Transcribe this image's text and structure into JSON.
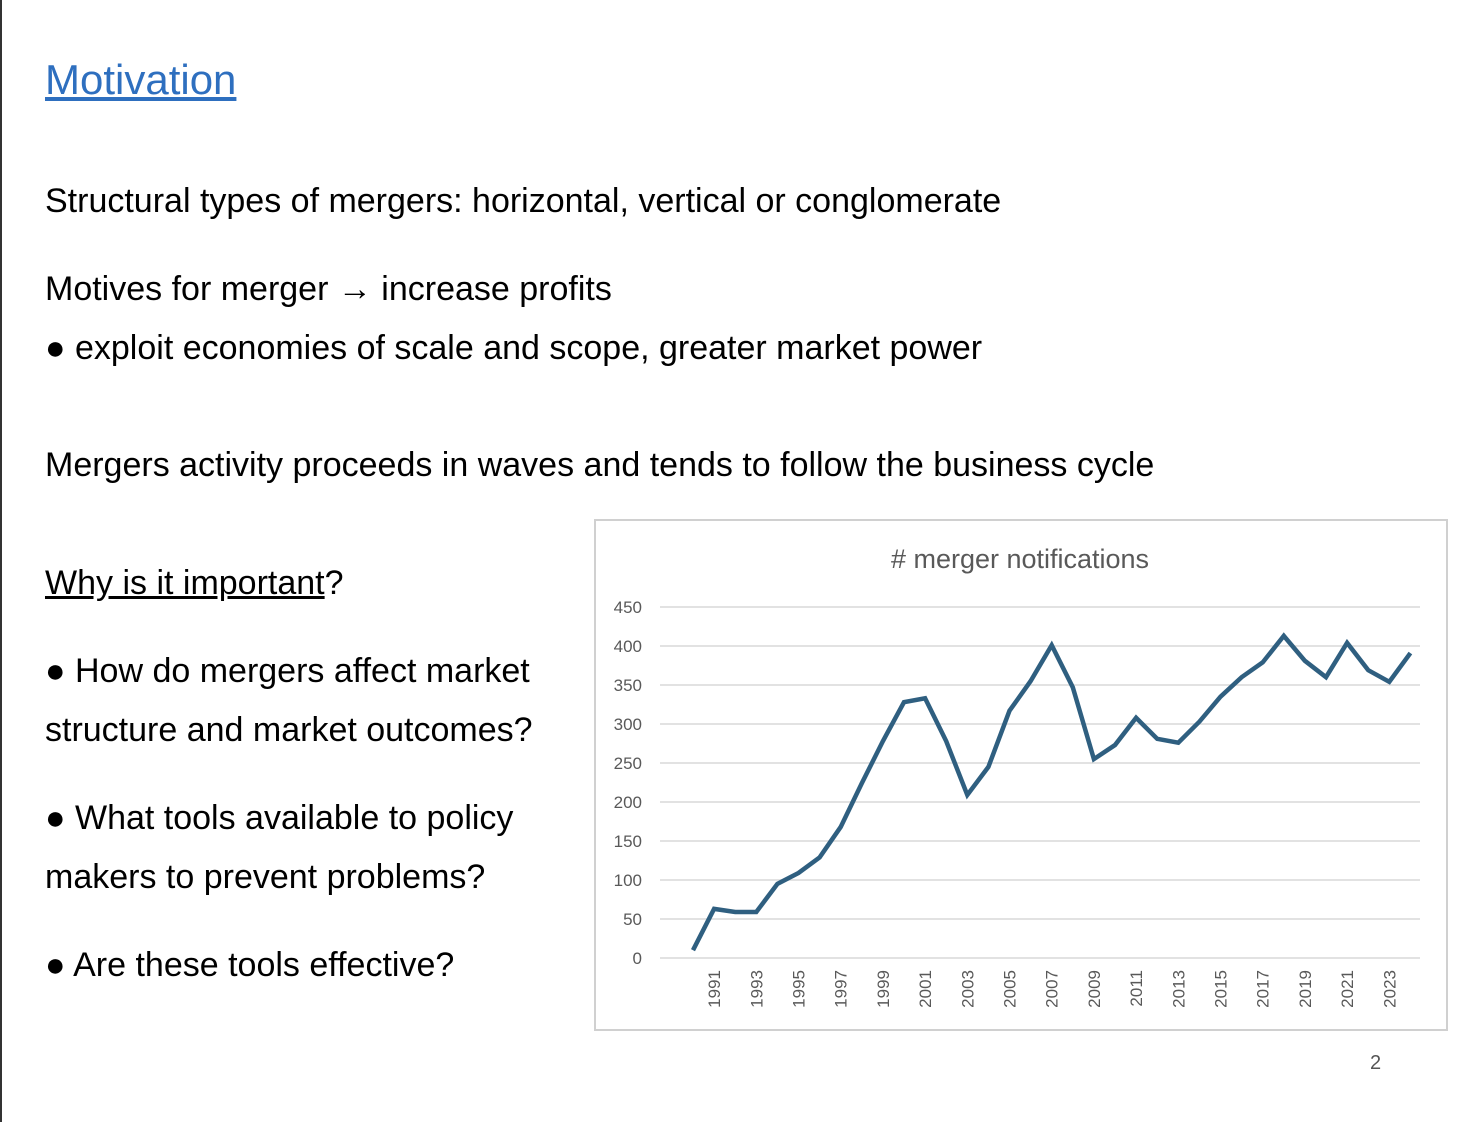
{
  "slide": {
    "title": "Motivation",
    "line1": "Structural types of mergers: horizontal, vertical or conglomerate",
    "line2": "Motives for merger → increase profits",
    "line3": "● exploit economies of scale and scope, greater market power",
    "line4": "Mergers activity proceeds in waves and tends to follow the business cycle",
    "why_underlined": "Why is it important",
    "why_rest": "?",
    "q1a": "● How do mergers affect market",
    "q1b": "structure and market outcomes?",
    "q2a": "● What tools available to policy",
    "q2b": "makers to prevent problems?",
    "q3": "● Are these tools effective?",
    "page_number": "2"
  },
  "chart_data": {
    "type": "line",
    "title": "# merger notifications",
    "categories": [
      null,
      "1991",
      null,
      "1993",
      null,
      "1995",
      null,
      "1997",
      null,
      "1999",
      null,
      "2001",
      null,
      "2003",
      null,
      "2005",
      null,
      "2007",
      null,
      "2009",
      null,
      "2011",
      null,
      "2013",
      null,
      "2015",
      null,
      "2017",
      null,
      "2019",
      null,
      "2021",
      null,
      "2023",
      null
    ],
    "values": [
      10,
      63,
      59,
      59,
      95,
      109,
      129,
      168,
      224,
      278,
      328,
      333,
      278,
      209,
      245,
      317,
      355,
      401,
      347,
      255,
      273,
      308,
      281,
      276,
      303,
      335,
      360,
      379,
      413,
      381,
      360,
      404,
      369,
      354,
      391
    ],
    "color": "#2f5f80",
    "ylim": [
      0,
      450
    ],
    "yticks": [
      0,
      50,
      100,
      150,
      200,
      250,
      300,
      350,
      400,
      450
    ],
    "grid": true
  }
}
